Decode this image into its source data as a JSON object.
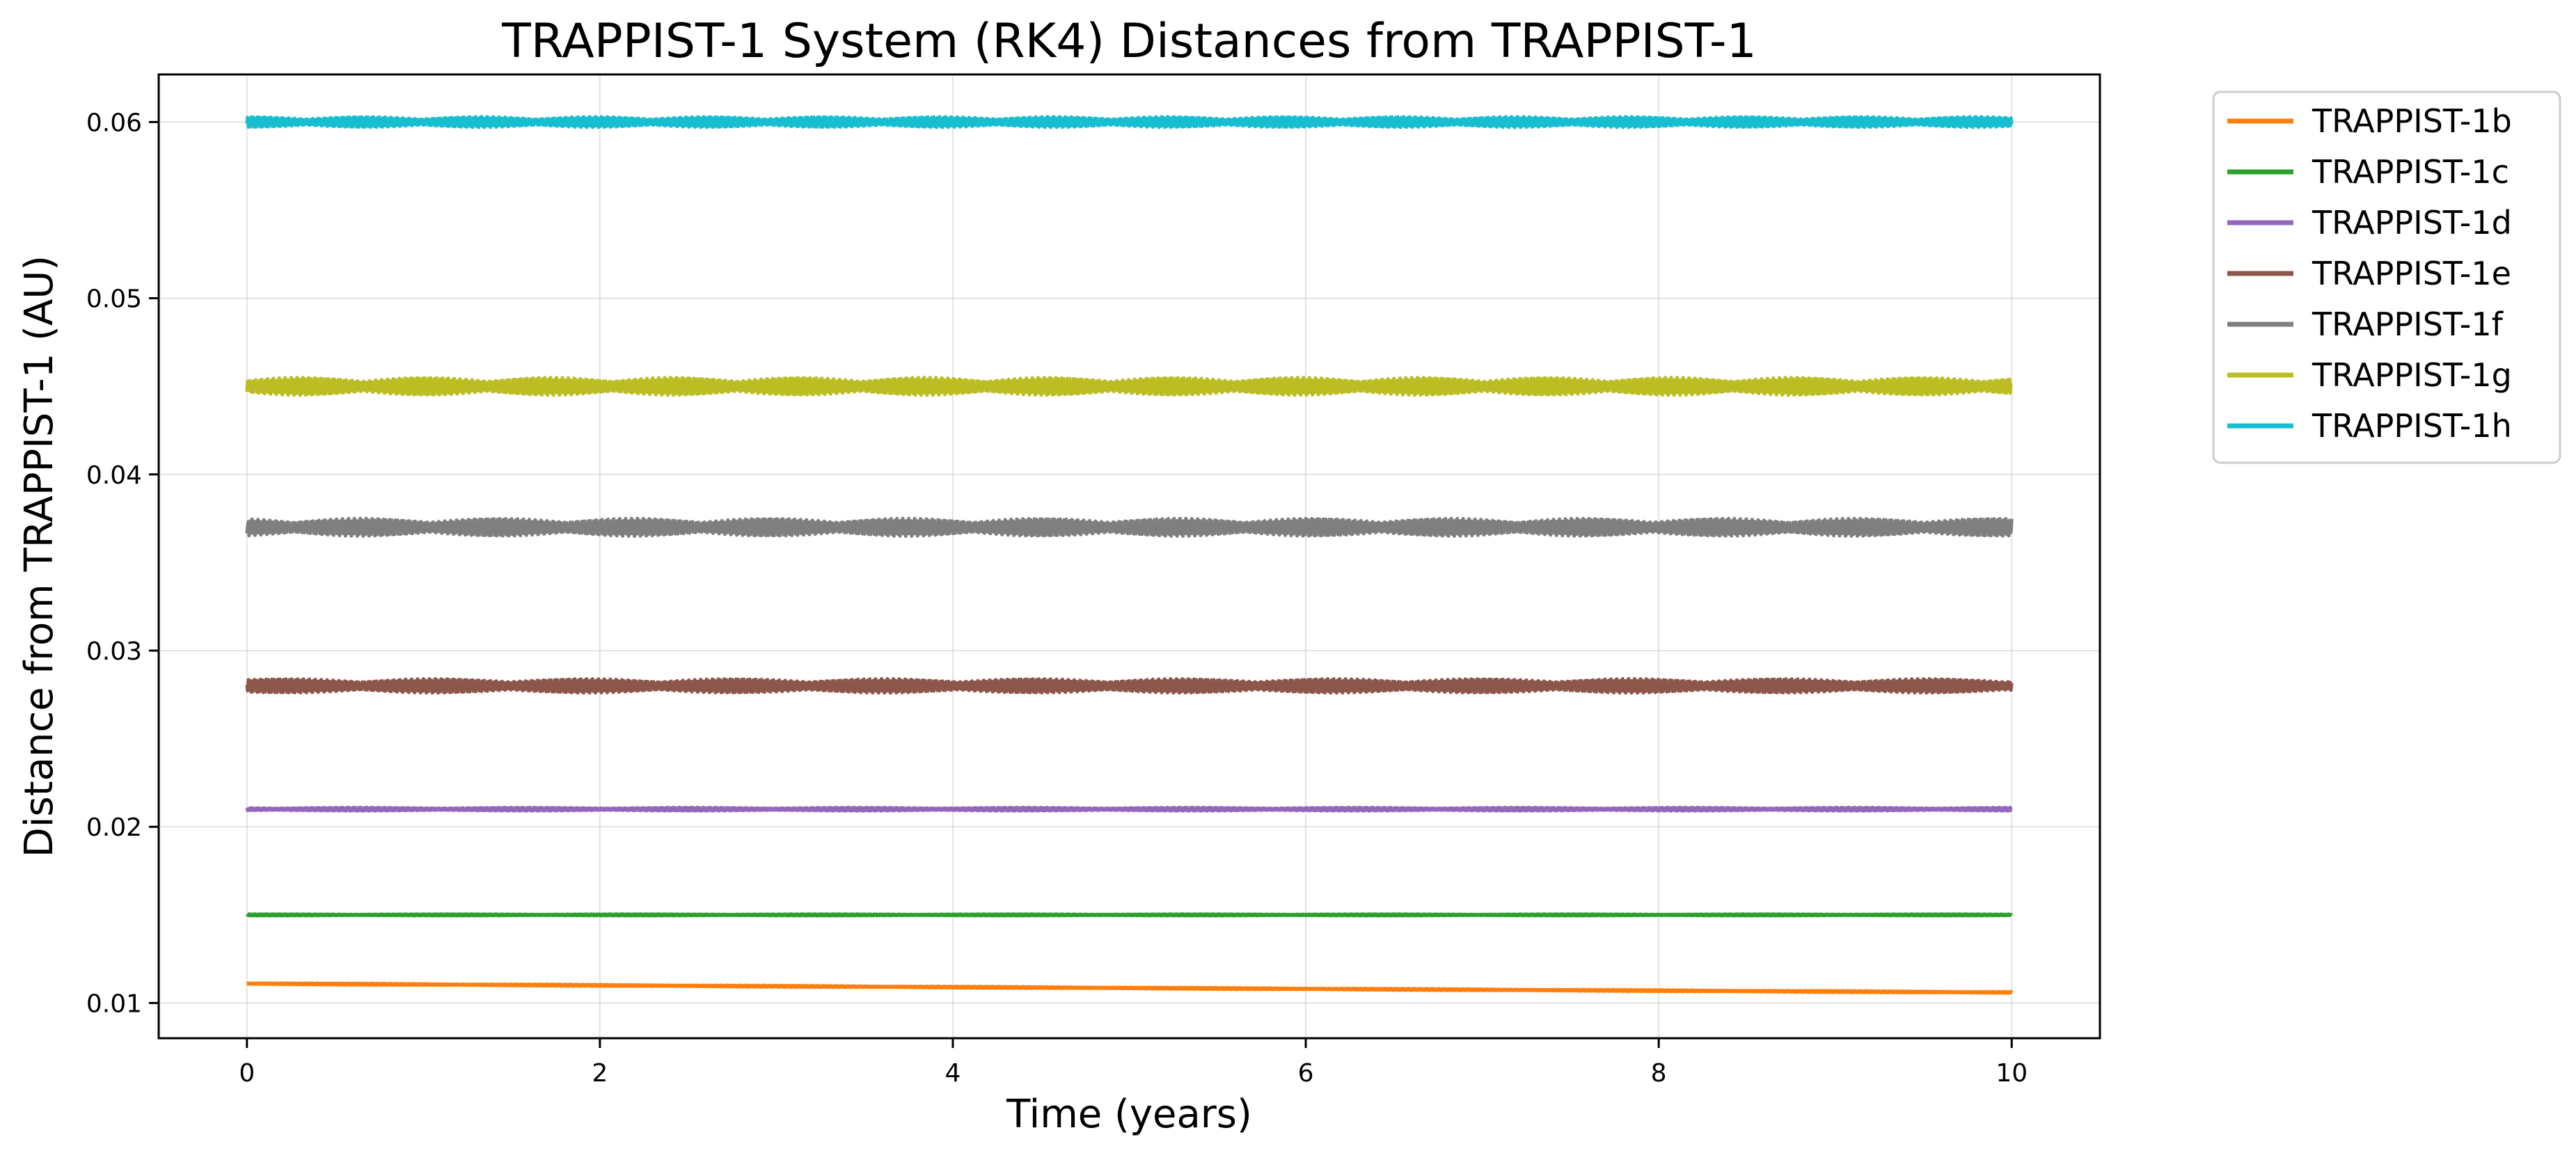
{
  "chart_data": {
    "type": "line",
    "title": "TRAPPIST-1 System (RK4) Distances from TRAPPIST-1",
    "xlabel": "Time (years)",
    "ylabel": "Distance from TRAPPIST-1 (AU)",
    "xlim": [
      -0.5,
      10.5
    ],
    "ylim": [
      0.008,
      0.0627
    ],
    "xticks": [
      0,
      2,
      4,
      6,
      8,
      10
    ],
    "xtick_labels": [
      "0",
      "2",
      "4",
      "6",
      "8",
      "10"
    ],
    "yticks": [
      0.01,
      0.02,
      0.03,
      0.04,
      0.05,
      0.06
    ],
    "ytick_labels": [
      "0.01",
      "0.02",
      "0.03",
      "0.04",
      "0.05",
      "0.06"
    ],
    "grid": true,
    "legend_position": "outside right, top",
    "series": [
      {
        "name": "TRAPPIST-1b",
        "color": "#ff7f0e",
        "x": [
          0,
          2,
          4,
          6,
          8,
          10
        ],
        "values": [
          0.0111,
          0.011,
          0.0109,
          0.0108,
          0.0107,
          0.0106
        ],
        "amplitude": 5e-05
      },
      {
        "name": "TRAPPIST-1c",
        "color": "#2ca02c",
        "x": [
          0,
          2,
          4,
          6,
          8,
          10
        ],
        "values": [
          0.015,
          0.015,
          0.015,
          0.015,
          0.015,
          0.015
        ],
        "amplitude": 5e-05
      },
      {
        "name": "TRAPPIST-1d",
        "color": "#9467bd",
        "x": [
          0,
          2,
          4,
          6,
          8,
          10
        ],
        "values": [
          0.021,
          0.021,
          0.021,
          0.021,
          0.021,
          0.021
        ],
        "amplitude": 0.0001
      },
      {
        "name": "TRAPPIST-1e",
        "color": "#8c564b",
        "x": [
          0,
          2,
          4,
          6,
          8,
          10
        ],
        "values": [
          0.028,
          0.028,
          0.028,
          0.028,
          0.028,
          0.028
        ],
        "amplitude": 0.0004
      },
      {
        "name": "TRAPPIST-1f",
        "color": "#7f7f7f",
        "x": [
          0,
          2,
          4,
          6,
          8,
          10
        ],
        "values": [
          0.037,
          0.037,
          0.037,
          0.037,
          0.037,
          0.037
        ],
        "amplitude": 0.0005
      },
      {
        "name": "TRAPPIST-1g",
        "color": "#bcbd22",
        "x": [
          0,
          2,
          4,
          6,
          8,
          10
        ],
        "values": [
          0.045,
          0.045,
          0.045,
          0.045,
          0.045,
          0.045
        ],
        "amplitude": 0.0005
      },
      {
        "name": "TRAPPIST-1h",
        "color": "#17becf",
        "x": [
          0,
          2,
          4,
          6,
          8,
          10
        ],
        "values": [
          0.06,
          0.06,
          0.06,
          0.06,
          0.06,
          0.06
        ],
        "amplitude": 0.0003
      }
    ]
  }
}
